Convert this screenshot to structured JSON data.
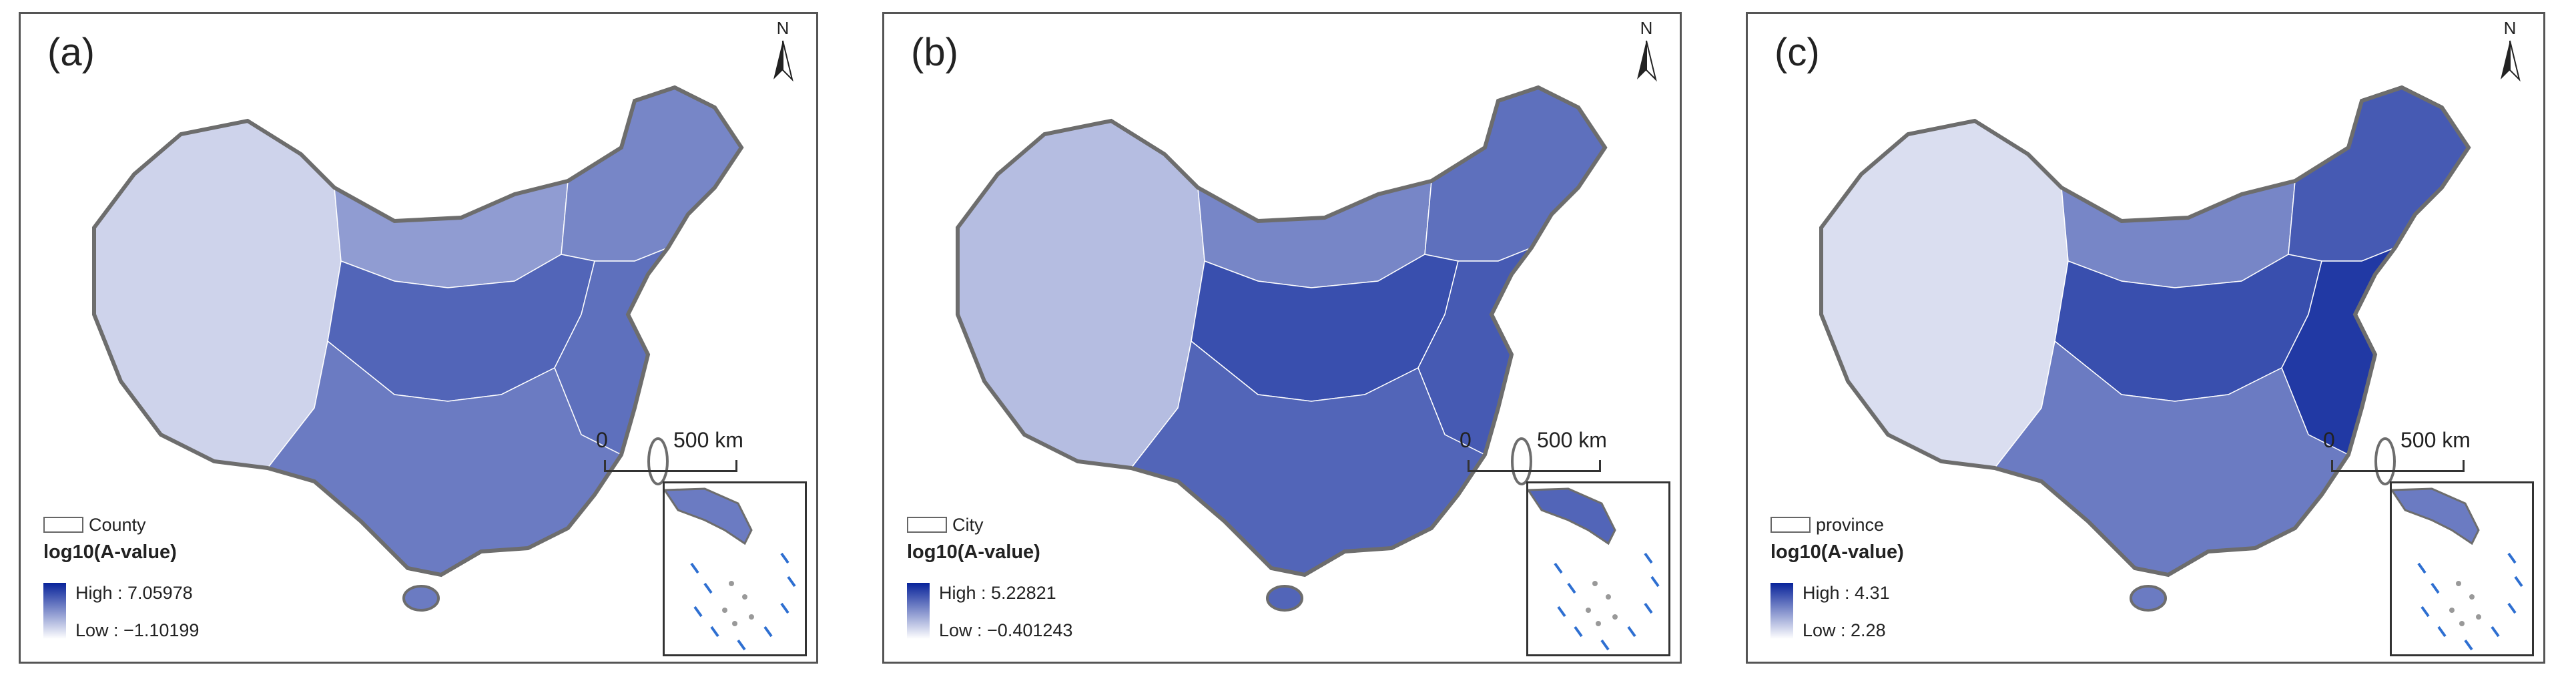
{
  "colors": {
    "ramp_high": "#08239a",
    "ramp_low": "#ffffff",
    "frame": "#555555",
    "coast": "#6d6d6d"
  },
  "scale_bar": {
    "zero": "0",
    "distance": "500 km"
  },
  "north_arrow": {
    "letter": "N",
    "icon": "north-arrow-icon"
  },
  "legend_title": "log10(A-value)",
  "panels": [
    {
      "label": "(a)",
      "unit": "County",
      "high": "High : 7.05978",
      "low": "Low : −1.10199",
      "fill_levels": {
        "west": 0.2,
        "north": 0.45,
        "northeast": 0.55,
        "central": 0.7,
        "south": 0.6,
        "east": 0.65
      }
    },
    {
      "label": "(b)",
      "unit": "City",
      "high": "High : 5.22821",
      "low": "Low : −0.401243",
      "fill_levels": {
        "west": 0.3,
        "north": 0.55,
        "northeast": 0.65,
        "central": 0.8,
        "south": 0.7,
        "east": 0.75
      }
    },
    {
      "label": "(c)",
      "unit": "province",
      "high": "High : 4.31",
      "low": "Low : 2.28",
      "fill_levels": {
        "west": 0.15,
        "north": 0.55,
        "northeast": 0.75,
        "central": 0.8,
        "south": 0.6,
        "east": 0.9
      }
    }
  ]
}
